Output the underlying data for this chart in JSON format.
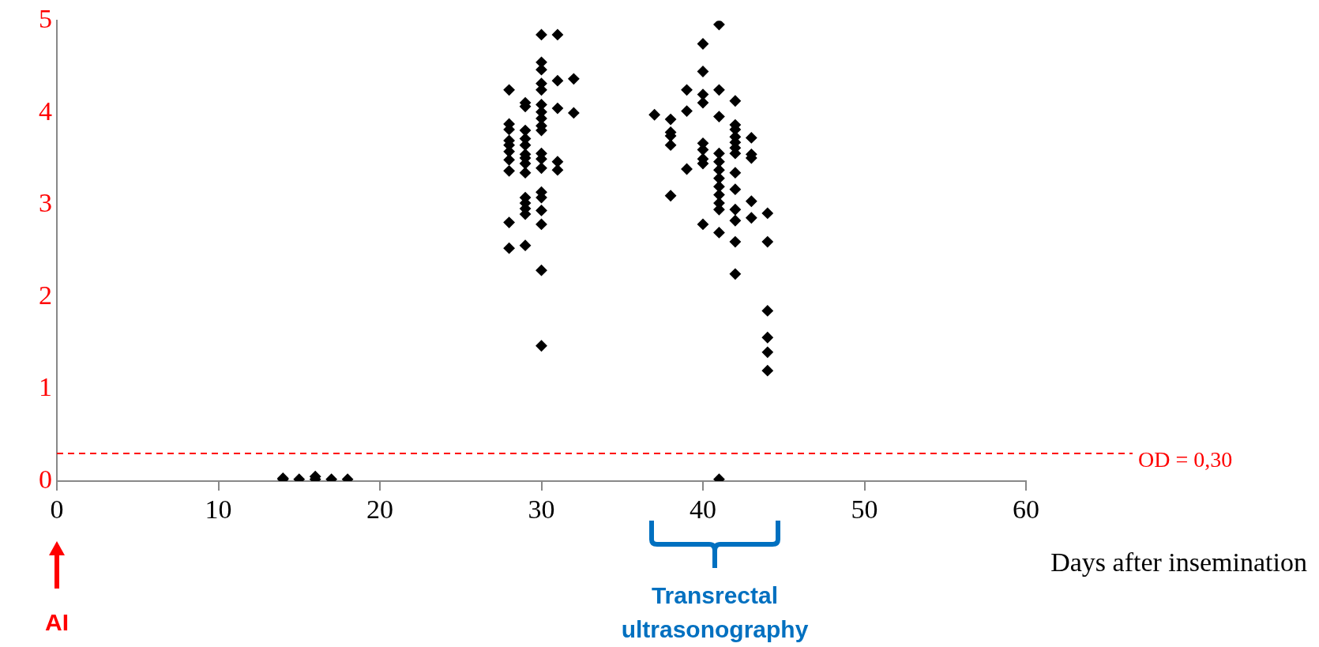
{
  "chart_data": {
    "type": "scatter",
    "xlabel": "Days after insemination",
    "marker": "diamond",
    "grid": false,
    "legend": false,
    "xlim": [
      0,
      60
    ],
    "xticks": [
      0,
      10,
      20,
      30,
      40,
      50,
      60
    ],
    "ylim": [
      0,
      5
    ],
    "yticks": [
      0,
      1,
      2,
      3,
      4,
      5
    ],
    "ref_lines": [
      {
        "axis": "y",
        "value": 0.3,
        "label": "OD = 0,30",
        "color": "#ff0000",
        "line_style": "dashed"
      }
    ],
    "annotations": [
      "AI",
      "Transrectal ultrasonography"
    ],
    "series": [
      {
        "color": "#000000",
        "x": [
          14,
          14,
          15,
          16,
          16,
          17,
          18,
          28,
          28,
          28,
          28,
          28,
          28,
          28,
          28,
          28,
          28,
          29,
          29,
          29,
          29,
          29,
          29,
          29,
          29,
          29,
          29,
          29,
          29,
          29,
          29,
          30,
          30,
          30,
          30,
          30,
          30,
          30,
          30,
          30,
          30,
          30,
          30,
          30,
          30,
          30,
          30,
          30,
          30,
          30,
          31,
          31,
          31,
          31,
          31,
          32,
          32,
          37,
          38,
          38,
          38,
          38,
          38,
          39,
          39,
          39,
          40,
          40,
          40,
          40,
          40,
          40,
          40,
          40,
          40,
          41,
          41,
          41,
          41,
          41,
          41,
          41,
          41,
          41,
          41,
          41,
          41,
          41,
          42,
          42,
          42,
          42,
          42,
          42,
          42,
          42,
          42,
          42,
          42,
          42,
          42,
          43,
          43,
          43,
          43,
          43,
          44,
          44,
          44,
          44,
          44,
          44
        ],
        "values": [
          0.03,
          0.02,
          0.02,
          0.05,
          0.02,
          0.02,
          0.02,
          4.25,
          3.88,
          3.82,
          3.7,
          3.65,
          3.58,
          3.49,
          3.37,
          2.81,
          2.53,
          4.11,
          4.07,
          3.81,
          3.72,
          3.65,
          3.55,
          3.51,
          3.45,
          3.35,
          3.08,
          3.02,
          2.96,
          2.9,
          2.56,
          4.85,
          4.55,
          4.47,
          4.32,
          4.25,
          4.09,
          4.01,
          3.94,
          3.86,
          3.81,
          3.56,
          3.5,
          3.4,
          3.14,
          3.08,
          2.94,
          2.79,
          2.29,
          1.47,
          4.85,
          4.35,
          4.05,
          3.47,
          3.38,
          4.37,
          4,
          3.98,
          3.93,
          3.79,
          3.75,
          3.65,
          3.1,
          4.25,
          4.02,
          3.39,
          4.75,
          4.45,
          4.2,
          4.11,
          3.67,
          3.6,
          3.5,
          3.45,
          2.79,
          4.96,
          4.25,
          3.96,
          3.56,
          3.47,
          3.38,
          3.29,
          3.2,
          3.11,
          3.02,
          2.95,
          2.7,
          0.02,
          4.13,
          3.87,
          3.82,
          3.74,
          3.68,
          3.62,
          3.56,
          3.35,
          3.17,
          2.95,
          2.83,
          2.6,
          2.25,
          3.73,
          3.55,
          3.51,
          3.04,
          2.86,
          2.91,
          2.6,
          1.85,
          1.56,
          1.4,
          1.2
        ]
      }
    ]
  }
}
